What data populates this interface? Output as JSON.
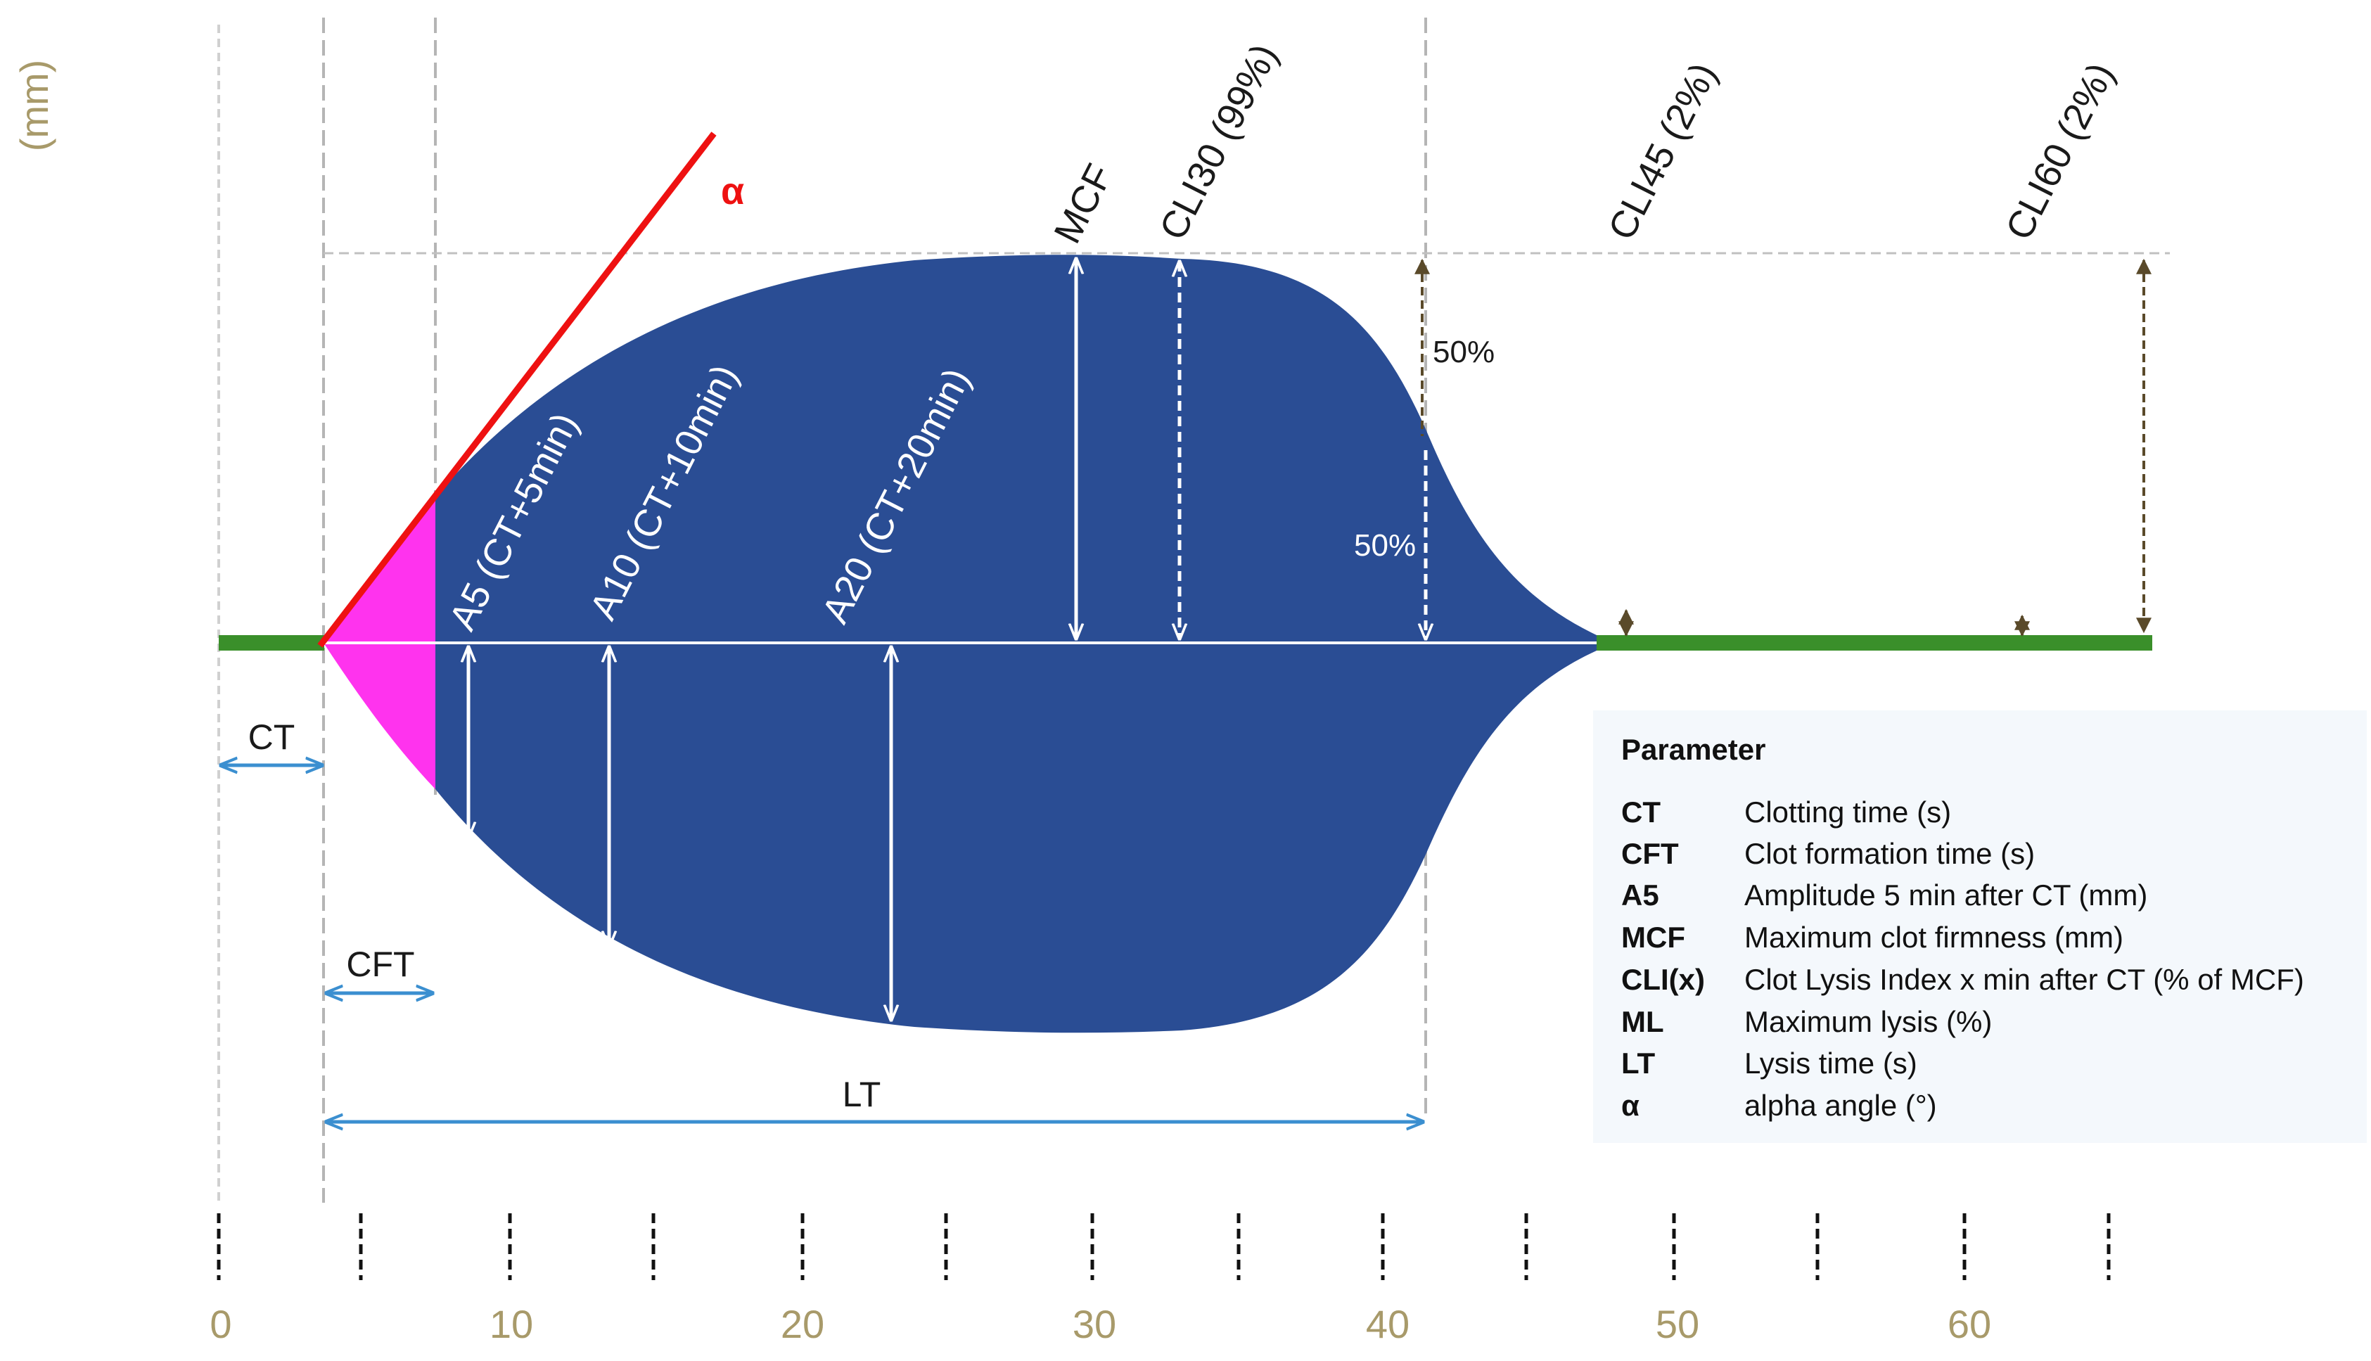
{
  "y_unit_label": "(mm)",
  "x_axis": {
    "ticks": [
      "0",
      "10",
      "20",
      "30",
      "40",
      "50",
      "60"
    ]
  },
  "angle_label": "α",
  "trace_labels": {
    "mcf": "MCF",
    "cli30": "CLI30 (99%)",
    "cli45": "CLI45 (2%)",
    "cli60": "CLI60 (2%)",
    "a5": "A5 (CT+5min)",
    "a10": "A10 (CT+10min)",
    "a20": "A20 (CT+20min)",
    "half_upper": "50%",
    "half_lower": "50%"
  },
  "interval_labels": {
    "ct": "CT",
    "cft": "CFT",
    "lt": "LT"
  },
  "legend": {
    "title": "Parameter",
    "rows": [
      {
        "abbr": "CT",
        "desc": "Clotting time (s)"
      },
      {
        "abbr": "CFT",
        "desc": "Clot formation time (s)"
      },
      {
        "abbr": "A5",
        "desc": "Amplitude 5 min after CT (mm)"
      },
      {
        "abbr": "MCF",
        "desc": "Maximum clot firmness (mm)"
      },
      {
        "abbr": "CLI(x)",
        "desc": "Clot Lysis Index x min after CT (% of MCF)"
      },
      {
        "abbr": "ML",
        "desc": "Maximum lysis (%)"
      },
      {
        "abbr": "LT",
        "desc": "Lysis time (s)"
      },
      {
        "abbr": "α",
        "desc": "alpha angle (°)"
      }
    ]
  },
  "colors": {
    "trace_fill": "#2a4d94",
    "cft_fill": "#ff33ee",
    "alpha_line": "#ee1111",
    "baseline": "#3a8f2a",
    "interval_arrow": "#3b8fd0",
    "axis_text": "#a89a6a",
    "legend_bg": "#f4f8fc"
  }
}
